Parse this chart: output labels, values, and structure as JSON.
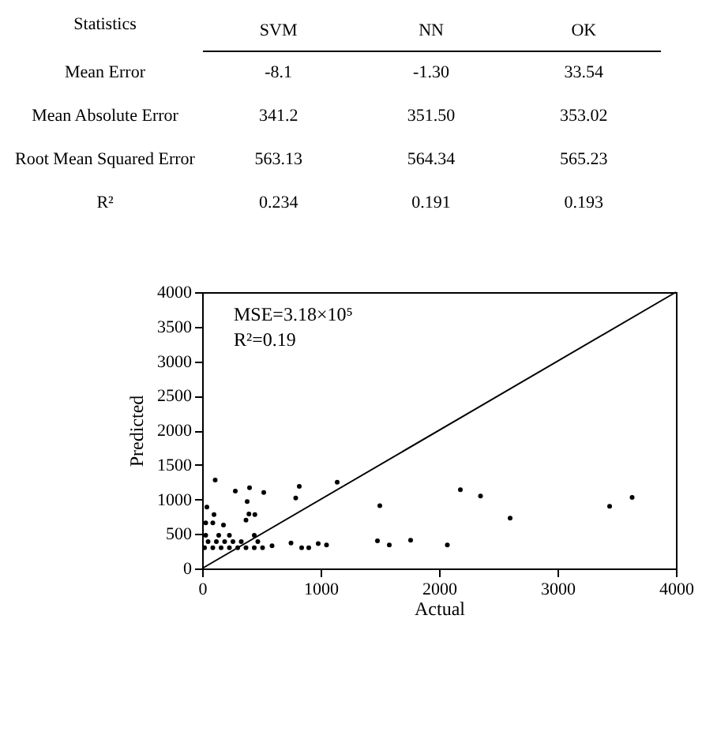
{
  "chart_data": [
    {
      "type": "heatmap",
      "ylabel": "Statistics",
      "categories": [
        "SVM",
        "NN",
        "OK"
      ],
      "y_categories": [
        "Mean Error",
        "Mean Absolute Error",
        "Root Mean Squared Error",
        "R²"
      ],
      "cells": [
        [
          -8.1,
          -1.3,
          33.54
        ],
        [
          341.2,
          351.5,
          353.02
        ],
        [
          563.13,
          564.34,
          565.23
        ],
        [
          0.234,
          0.191,
          0.193
        ]
      ],
      "cell_labels": [
        [
          "-8.1",
          "-1.30",
          "33.54"
        ],
        [
          "341.2",
          "351.50",
          "353.02"
        ],
        [
          "563.13",
          "564.34",
          "565.23"
        ],
        [
          "0.234",
          "0.191",
          "0.193"
        ]
      ]
    },
    {
      "type": "scatter",
      "xlabel": "Actual",
      "ylabel": "Predicted",
      "xlim": [
        0,
        4000
      ],
      "ylim": [
        0,
        4000
      ],
      "xticks": [
        0,
        1000,
        2000,
        3000,
        4000
      ],
      "yticks": [
        0,
        500,
        1000,
        1500,
        2000,
        2500,
        3000,
        3500,
        4000
      ],
      "annotations": [
        "MSE=3.18×10⁵",
        "R²=0.19"
      ],
      "series": [
        {
          "color": "#000000",
          "marker": "circle",
          "x": [
            110,
            280,
            400,
            520,
            380,
            370,
            395,
            445,
            790,
            820,
            1140,
            40,
            100,
            30,
            90,
            180,
            1500,
            1480,
            1580,
            1760,
            2070,
            2180,
            2350,
            2600,
            3440,
            3630,
            750,
            840,
            900,
            980,
            1050,
            590,
            20,
            90,
            160,
            230,
            300,
            370,
            440,
            510,
            50,
            120,
            190,
            260,
            330,
            470,
            30,
            140,
            230,
            440
          ],
          "values": [
            1280,
            1120,
            1170,
            1100,
            970,
            700,
            790,
            780,
            1020,
            1190,
            1250,
            890,
            780,
            660,
            660,
            630,
            910,
            400,
            340,
            410,
            340,
            1140,
            1050,
            730,
            900,
            1030,
            370,
            300,
            300,
            360,
            340,
            330,
            300,
            300,
            300,
            300,
            300,
            300,
            300,
            300,
            390,
            390,
            390,
            390,
            390,
            390,
            480,
            480,
            480,
            480
          ]
        },
        {
          "type": "line",
          "color": "#000000",
          "x": [
            0,
            4000
          ],
          "values": [
            0,
            4000
          ]
        }
      ]
    }
  ]
}
